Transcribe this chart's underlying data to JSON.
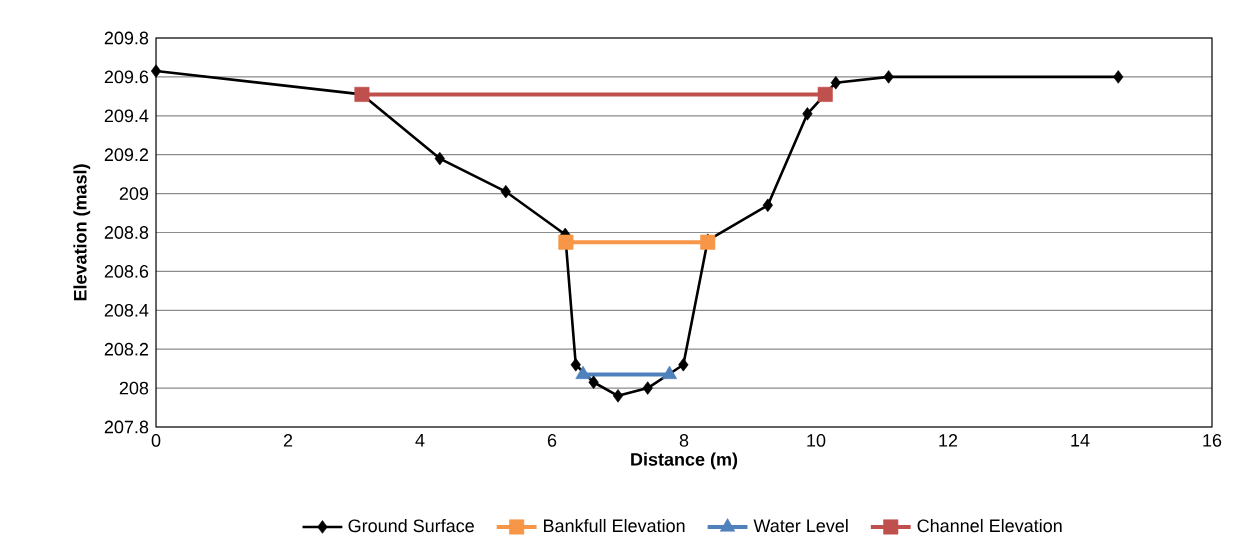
{
  "chart_data": {
    "type": "line",
    "xlabel": "Distance (m)",
    "ylabel": "Elevation (masl)",
    "xlim": [
      0,
      16
    ],
    "xticks": [
      0,
      2,
      4,
      6,
      8,
      10,
      12,
      14,
      16
    ],
    "ylim": [
      207.8,
      209.8
    ],
    "yticks": [
      207.8,
      208,
      208.2,
      208.4,
      208.6,
      208.8,
      209,
      209.2,
      209.4,
      209.6,
      209.8
    ],
    "grid": "y",
    "legend": "bottom",
    "line_style": "solid",
    "series": [
      {
        "name": "Ground Surface",
        "color": "#000000",
        "marker": "diamond",
        "x": [
          0,
          3.12,
          4.3,
          5.3,
          6.2,
          6.36,
          6.63,
          7.0,
          7.45,
          7.99,
          8.36,
          9.27,
          9.87,
          10.3,
          11.1,
          14.58
        ],
        "values": [
          209.63,
          209.51,
          209.18,
          209.01,
          208.79,
          208.12,
          208.03,
          207.96,
          208.0,
          208.12,
          208.76,
          208.94,
          209.41,
          209.57,
          209.6,
          209.6
        ]
      },
      {
        "name": "Bankfull Elevation",
        "color": "#f79646",
        "marker": "square",
        "x": [
          6.21,
          8.36
        ],
        "values": [
          208.75,
          208.75
        ]
      },
      {
        "name": "Water Level",
        "color": "#4f81bd",
        "marker": "triangle",
        "x": [
          6.47,
          7.78
        ],
        "values": [
          208.07,
          208.07
        ]
      },
      {
        "name": "Channel Elevation",
        "color": "#c0504d",
        "marker": "square",
        "x": [
          3.12,
          10.14
        ],
        "values": [
          209.51,
          209.51
        ]
      }
    ]
  }
}
